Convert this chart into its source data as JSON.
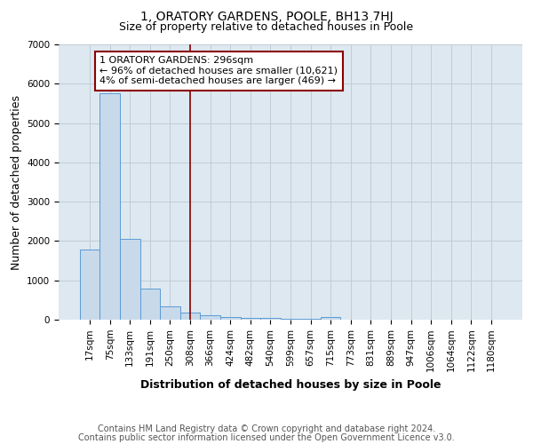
{
  "title": "1, ORATORY GARDENS, POOLE, BH13 7HJ",
  "subtitle": "Size of property relative to detached houses in Poole",
  "xlabel": "Distribution of detached houses by size in Poole",
  "ylabel": "Number of detached properties",
  "bar_labels": [
    "17sqm",
    "75sqm",
    "133sqm",
    "191sqm",
    "250sqm",
    "308sqm",
    "366sqm",
    "424sqm",
    "482sqm",
    "540sqm",
    "599sqm",
    "657sqm",
    "715sqm",
    "773sqm",
    "831sqm",
    "889sqm",
    "947sqm",
    "1006sqm",
    "1064sqm",
    "1122sqm",
    "1180sqm"
  ],
  "bar_values": [
    1780,
    5750,
    2060,
    790,
    350,
    185,
    115,
    75,
    55,
    40,
    30,
    25,
    65,
    10,
    8,
    5,
    4,
    3,
    2,
    1,
    0
  ],
  "bar_color": "#c8d9ea",
  "bar_edge_color": "#5b9bd5",
  "ylim": [
    0,
    7000
  ],
  "vline_x": 5.0,
  "vline_color": "#8b0000",
  "annotation_text": "1 ORATORY GARDENS: 296sqm\n← 96% of detached houses are smaller (10,621)\n4% of semi-detached houses are larger (469) →",
  "annotation_box_color": "#8b0000",
  "footer_line1": "Contains HM Land Registry data © Crown copyright and database right 2024.",
  "footer_line2": "Contains public sector information licensed under the Open Government Licence v3.0.",
  "bg_color": "#ffffff",
  "plot_bg_color": "#dde8f0",
  "grid_color": "#c0cdd8",
  "title_fontsize": 10,
  "subtitle_fontsize": 9,
  "axis_label_fontsize": 9,
  "tick_fontsize": 7.5,
  "footer_fontsize": 7,
  "ann_fontsize": 8
}
